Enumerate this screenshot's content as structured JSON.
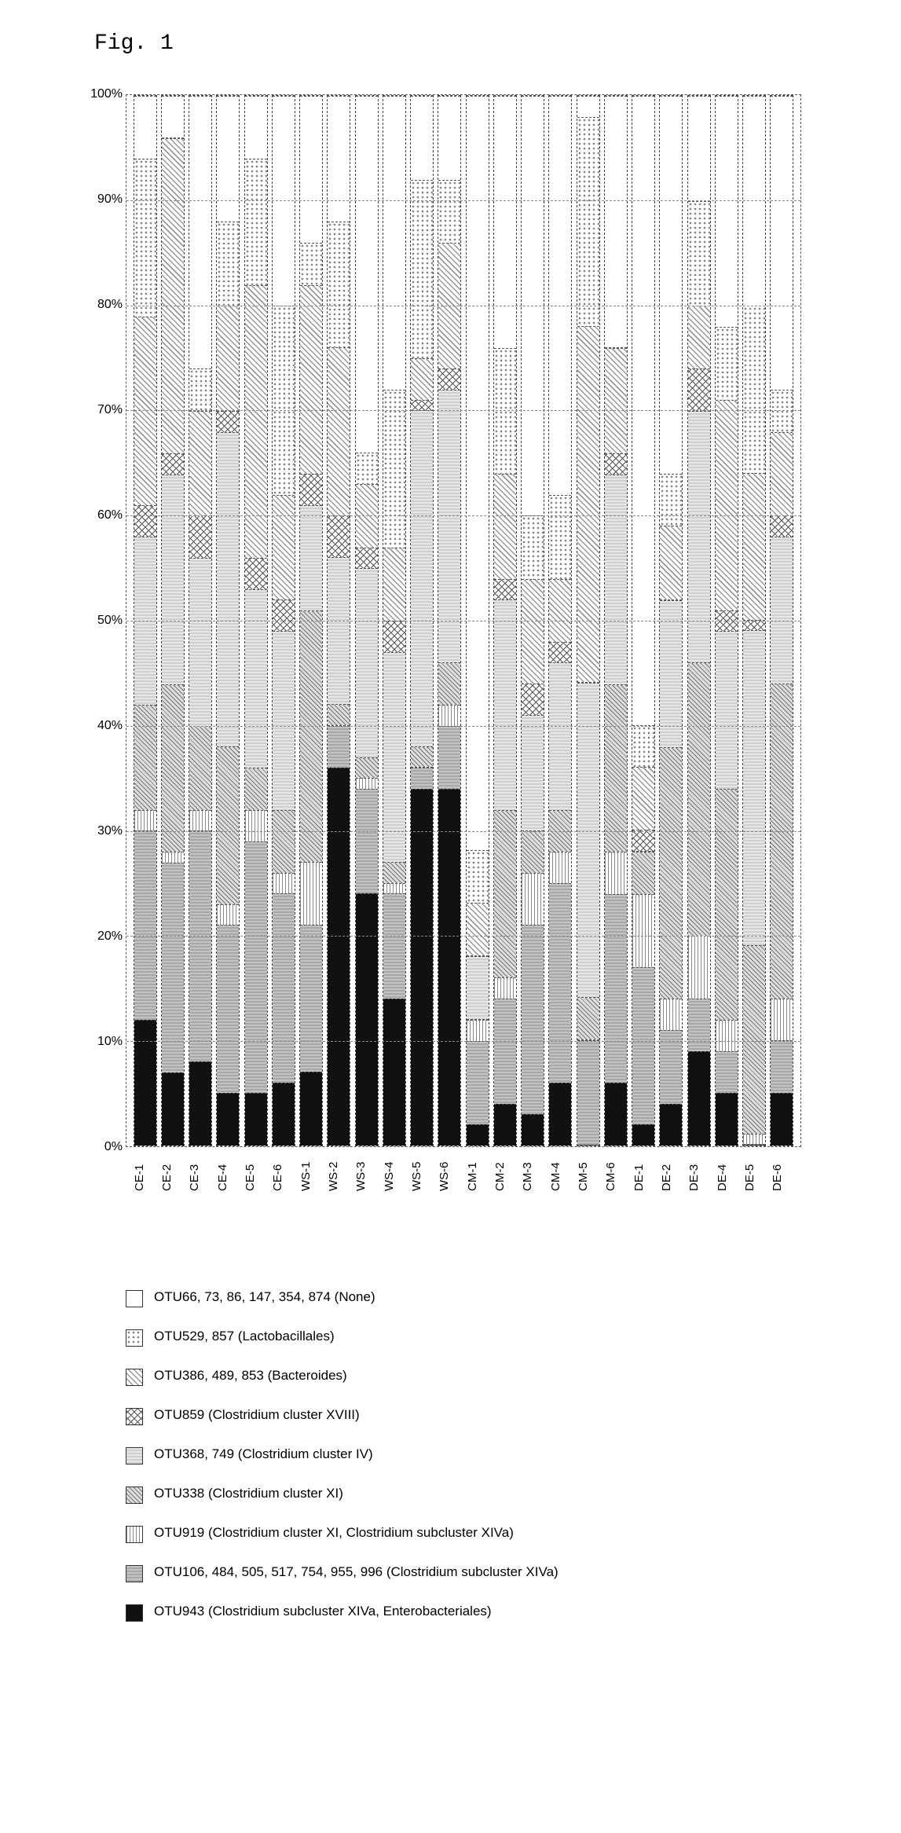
{
  "figure_label": "Fig. 1",
  "chart": {
    "type": "stacked-bar",
    "ylabel_suffix": "%",
    "ylim": [
      0,
      100
    ],
    "ytick_step": 10,
    "yticks": [
      "0%",
      "10%",
      "20%",
      "30%",
      "40%",
      "50%",
      "60%",
      "70%",
      "80%",
      "90%",
      "100%"
    ],
    "grid_color": "#888888",
    "background_color": "#ffffff",
    "bar_border": "dashed",
    "label_fontsize": 16,
    "xlabel_fontsize": 15,
    "legend_fontsize": 17,
    "categories": [
      "CE-1",
      "CE-2",
      "CE-3",
      "CE-4",
      "CE-5",
      "CE-6",
      "WS-1",
      "WS-2",
      "WS-3",
      "WS-4",
      "WS-5",
      "WS-6",
      "CM-1",
      "CM-2",
      "CM-3",
      "CM-4",
      "CM-5",
      "CM-6",
      "DE-1",
      "DE-2",
      "DE-3",
      "DE-4",
      "DE-5",
      "DE-6"
    ],
    "series": [
      {
        "id": "s1",
        "label": "OTU66, 73, 86, 147, 354, 874 (None)",
        "pattern": "pat-white",
        "color": "#ffffff"
      },
      {
        "id": "s2",
        "label": "OTU529, 857 (Lactobacillales)",
        "pattern": "pat-dots",
        "color": "#ffffff"
      },
      {
        "id": "s3",
        "label": "OTU386, 489, 853 (Bacteroides)",
        "pattern": "pat-diag",
        "color": "#ffffff"
      },
      {
        "id": "s4",
        "label": "OTU859 (Clostridium cluster XVIII)",
        "pattern": "pat-x",
        "color": "#ffffff"
      },
      {
        "id": "s5",
        "label": "OTU368, 749 (Clostridium cluster IV)",
        "pattern": "pat-lgray",
        "color": "#dcdcdc"
      },
      {
        "id": "s6",
        "label": "OTU338 (Clostridium cluster XI)",
        "pattern": "pat-hatch",
        "color": "#cccccc"
      },
      {
        "id": "s7",
        "label": "OTU919 (Clostridium cluster XI, Clostridium subcluster XIVa)",
        "pattern": "pat-vlines",
        "color": "#ffffff"
      },
      {
        "id": "s8",
        "label": "OTU106, 484, 505, 517, 754, 955, 996 (Clostridium subcluster XIVa)",
        "pattern": "pat-gray",
        "color": "#b0b0b0"
      },
      {
        "id": "s9",
        "label": "OTU943 (Clostridium subcluster XIVa, Enterobacteriales)",
        "pattern": "pat-black",
        "color": "#111111"
      }
    ],
    "data": {
      "CE-1": [
        6,
        15,
        18,
        3,
        16,
        10,
        2,
        18,
        12
      ],
      "CE-2": [
        4,
        0,
        30,
        2,
        20,
        16,
        1,
        20,
        7
      ],
      "CE-3": [
        26,
        4,
        10,
        4,
        16,
        8,
        2,
        22,
        8
      ],
      "CE-4": [
        12,
        8,
        10,
        2,
        30,
        15,
        2,
        16,
        5
      ],
      "CE-5": [
        6,
        12,
        26,
        3,
        17,
        4,
        3,
        24,
        5
      ],
      "CE-6": [
        20,
        18,
        10,
        3,
        17,
        6,
        2,
        18,
        6
      ],
      "WS-1": [
        14,
        4,
        18,
        3,
        10,
        24,
        6,
        14,
        7
      ],
      "WS-2": [
        12,
        12,
        16,
        4,
        14,
        2,
        0,
        4,
        36
      ],
      "WS-3": [
        34,
        3,
        6,
        2,
        18,
        2,
        1,
        10,
        24
      ],
      "WS-4": [
        28,
        15,
        7,
        3,
        20,
        2,
        1,
        10,
        14
      ],
      "WS-5": [
        8,
        17,
        4,
        1,
        32,
        2,
        0,
        2,
        34
      ],
      "WS-6": [
        8,
        6,
        12,
        2,
        26,
        4,
        2,
        6,
        34
      ],
      "CM-1": [
        72,
        5,
        5,
        0,
        6,
        0,
        2,
        8,
        2
      ],
      "CM-2": [
        24,
        12,
        10,
        2,
        20,
        16,
        2,
        10,
        4
      ],
      "CM-3": [
        40,
        6,
        10,
        3,
        11,
        4,
        5,
        18,
        3
      ],
      "CM-4": [
        38,
        8,
        6,
        2,
        14,
        4,
        3,
        19,
        6
      ],
      "CM-5": [
        2,
        20,
        34,
        0,
        30,
        4,
        0,
        10,
        0
      ],
      "CM-6": [
        24,
        0,
        10,
        2,
        20,
        16,
        4,
        18,
        6
      ],
      "DE-1": [
        60,
        4,
        6,
        2,
        0,
        4,
        7,
        15,
        2
      ],
      "DE-2": [
        36,
        5,
        7,
        0,
        14,
        24,
        3,
        7,
        4
      ],
      "DE-3": [
        10,
        10,
        6,
        4,
        24,
        26,
        6,
        5,
        9
      ],
      "DE-4": [
        22,
        7,
        20,
        2,
        15,
        22,
        3,
        4,
        5
      ],
      "DE-5": [
        20,
        16,
        14,
        1,
        30,
        18,
        1,
        0,
        0
      ],
      "DE-6": [
        28,
        4,
        8,
        2,
        14,
        30,
        4,
        5,
        5
      ]
    }
  }
}
